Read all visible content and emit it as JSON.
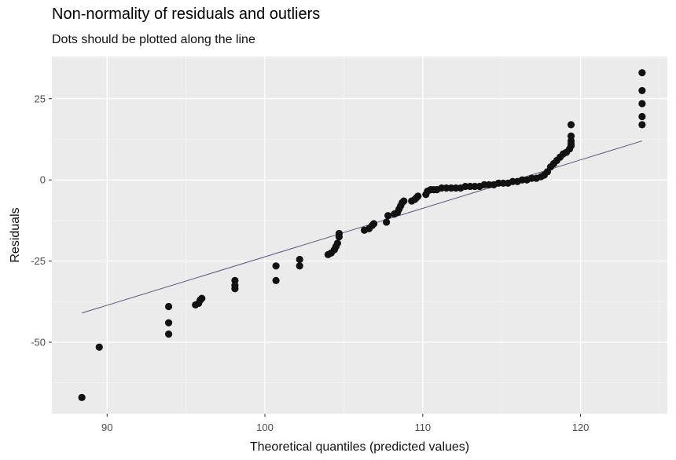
{
  "chart_data": {
    "type": "scatter",
    "title": "Non-normality of residuals and outliers",
    "subtitle": "Dots should be plotted along the line",
    "xlabel": "Theoretical quantiles (predicted values)",
    "ylabel": "Residuals",
    "xlim": [
      86.5,
      125.5
    ],
    "ylim": [
      -72,
      38
    ],
    "xticks": [
      90,
      100,
      110,
      120
    ],
    "yticks": [
      -50,
      -25,
      0,
      25
    ],
    "grid": true,
    "reference_line": {
      "x": [
        88.4,
        123.9
      ],
      "y": [
        -41,
        12
      ]
    },
    "points": [
      [
        88.4,
        -67
      ],
      [
        89.5,
        -51.5
      ],
      [
        93.9,
        -39
      ],
      [
        93.9,
        -44
      ],
      [
        93.9,
        -47.5
      ],
      [
        95.6,
        -38.5
      ],
      [
        95.8,
        -38
      ],
      [
        95.9,
        -37
      ],
      [
        96,
        -36.5
      ],
      [
        98.1,
        -31
      ],
      [
        98.1,
        -32.5
      ],
      [
        98.1,
        -33.5
      ],
      [
        100.7,
        -26.5
      ],
      [
        100.7,
        -31
      ],
      [
        102.2,
        -24.5
      ],
      [
        102.2,
        -26.5
      ],
      [
        104,
        -23
      ],
      [
        104.2,
        -22.5
      ],
      [
        104.4,
        -21.5
      ],
      [
        104.5,
        -20.5
      ],
      [
        104.6,
        -19.5
      ],
      [
        104.7,
        -17.5
      ],
      [
        104.7,
        -16.5
      ],
      [
        106.3,
        -15.5
      ],
      [
        106.6,
        -15
      ],
      [
        106.8,
        -14
      ],
      [
        106.9,
        -13.5
      ],
      [
        107.7,
        -13
      ],
      [
        107.8,
        -11
      ],
      [
        108.2,
        -10.5
      ],
      [
        108.4,
        -10
      ],
      [
        108.5,
        -9
      ],
      [
        108.6,
        -8
      ],
      [
        108.7,
        -7
      ],
      [
        108.8,
        -6.5
      ],
      [
        109.3,
        -6.5
      ],
      [
        109.5,
        -6
      ],
      [
        109.6,
        -5.5
      ],
      [
        109.7,
        -5
      ],
      [
        110.2,
        -4.5
      ],
      [
        110.3,
        -3.5
      ],
      [
        110.5,
        -3
      ],
      [
        110.7,
        -3
      ],
      [
        110.9,
        -3
      ],
      [
        111.2,
        -2.5
      ],
      [
        111.5,
        -2.5
      ],
      [
        111.8,
        -2.5
      ],
      [
        112.1,
        -2.5
      ],
      [
        112.4,
        -2.5
      ],
      [
        112.7,
        -2
      ],
      [
        113,
        -2
      ],
      [
        113.3,
        -2
      ],
      [
        113.6,
        -2
      ],
      [
        113.9,
        -1.5
      ],
      [
        114.2,
        -1.5
      ],
      [
        114.5,
        -1.5
      ],
      [
        114.8,
        -1
      ],
      [
        115.1,
        -1
      ],
      [
        115.4,
        -1
      ],
      [
        115.7,
        -0.5
      ],
      [
        116,
        -0.5
      ],
      [
        116.3,
        0
      ],
      [
        116.6,
        0
      ],
      [
        116.9,
        0.5
      ],
      [
        117.2,
        0.5
      ],
      [
        117.5,
        1
      ],
      [
        117.7,
        1.5
      ],
      [
        117.9,
        2.5
      ],
      [
        118.1,
        4
      ],
      [
        118.3,
        5
      ],
      [
        118.5,
        6
      ],
      [
        118.7,
        7
      ],
      [
        118.9,
        8
      ],
      [
        119.1,
        8.5
      ],
      [
        119.3,
        9.5
      ],
      [
        119.4,
        10.5
      ],
      [
        119.4,
        11
      ],
      [
        119.4,
        12
      ],
      [
        119.4,
        13.5
      ],
      [
        119.4,
        17
      ],
      [
        123.9,
        33
      ],
      [
        123.9,
        27.5
      ],
      [
        123.9,
        23.5
      ],
      [
        123.9,
        19.5
      ],
      [
        123.9,
        17
      ]
    ]
  }
}
